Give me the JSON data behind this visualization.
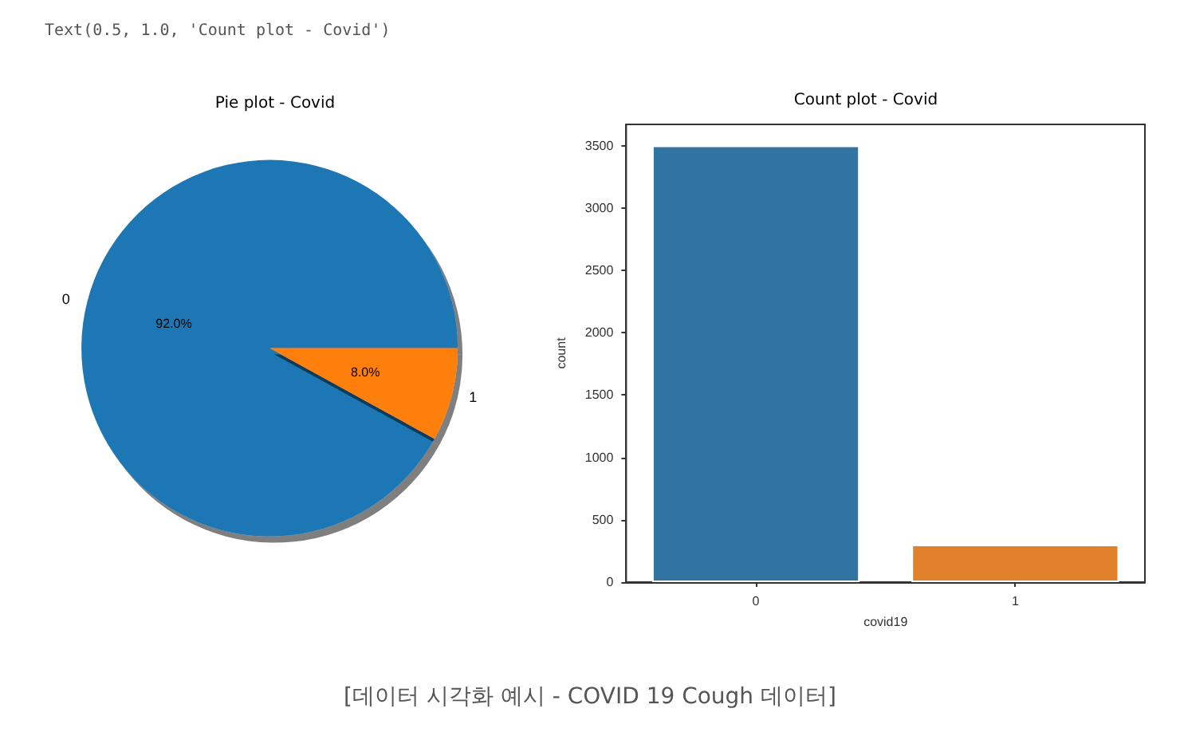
{
  "chart_data": [
    {
      "type": "pie",
      "title": "Pie plot - Covid",
      "categories": [
        "0",
        "1"
      ],
      "values": [
        92,
        8
      ],
      "colors": [
        "#1f77b4",
        "#ff7f0e"
      ],
      "value_labels": [
        "92.0%",
        "8.0%"
      ],
      "legend": false,
      "annotations": [
        "Text(0.5, 1.0, 'Count plot - Covid')"
      ]
    },
    {
      "type": "bar",
      "title": "Count plot - Covid",
      "xlabel": "covid19",
      "ylabel": "count",
      "categories": [
        "0",
        "1"
      ],
      "values": [
        3500,
        300
      ],
      "colors": [
        "#3274a1",
        "#e1812c"
      ],
      "ylim": [
        0,
        3670
      ],
      "yticks": [
        0,
        500,
        1000,
        1500,
        2000,
        2500,
        3000,
        3500
      ],
      "grid": false,
      "legend": false,
      "annotations": [
        "[데이터 시각화 예시 - COVID 19 Cough 데이터]"
      ]
    }
  ]
}
